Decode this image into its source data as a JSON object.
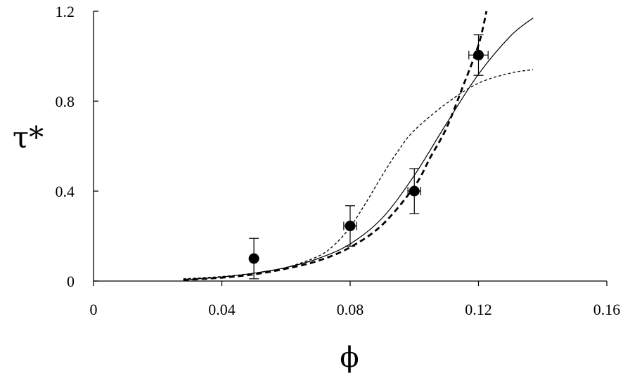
{
  "chart_data": {
    "type": "scatter",
    "title": "",
    "xlabel": "ϕ",
    "ylabel": "τ*",
    "xlim": [
      0,
      0.16
    ],
    "ylim": [
      0,
      1.2
    ],
    "x_ticks": [
      0,
      0.04,
      0.08,
      0.12,
      0.16
    ],
    "x_tick_labels": [
      "0",
      "0.04",
      "0.08",
      "0.12",
      "0.16"
    ],
    "y_ticks": [
      0,
      0.4,
      0.8,
      1.2
    ],
    "y_tick_labels": [
      "0",
      "0.4",
      "0.8",
      "1.2"
    ],
    "grid": false,
    "legend": "none",
    "points": [
      {
        "x": 0.05,
        "y": 0.1,
        "yerr": 0.09,
        "xerr": 0
      },
      {
        "x": 0.08,
        "y": 0.245,
        "yerr": 0.09,
        "xerr": 0.002
      },
      {
        "x": 0.1,
        "y": 0.4,
        "yerr": 0.1,
        "xerr": 0.002
      },
      {
        "x": 0.12,
        "y": 1.005,
        "yerr": 0.09,
        "xerr": 0.003
      }
    ],
    "curves": [
      {
        "style": "solid",
        "x": [
          0.028,
          0.04,
          0.05,
          0.06,
          0.07,
          0.08,
          0.09,
          0.1,
          0.11,
          0.12,
          0.13,
          0.137
        ],
        "y": [
          0.005,
          0.018,
          0.035,
          0.06,
          0.1,
          0.165,
          0.28,
          0.47,
          0.7,
          0.92,
          1.09,
          1.17
        ]
      },
      {
        "style": "dashed-thick",
        "x": [
          0.028,
          0.04,
          0.05,
          0.06,
          0.07,
          0.08,
          0.09,
          0.1,
          0.105,
          0.11,
          0.115,
          0.12,
          0.1225
        ],
        "y": [
          0.005,
          0.015,
          0.03,
          0.055,
          0.09,
          0.15,
          0.25,
          0.42,
          0.55,
          0.68,
          0.86,
          1.05,
          1.2
        ]
      },
      {
        "style": "dashed-thin",
        "x": [
          0.028,
          0.04,
          0.05,
          0.06,
          0.07,
          0.075,
          0.08,
          0.085,
          0.09,
          0.095,
          0.1,
          0.11,
          0.12,
          0.13,
          0.137
        ],
        "y": [
          0.01,
          0.02,
          0.035,
          0.06,
          0.11,
          0.16,
          0.24,
          0.35,
          0.47,
          0.58,
          0.67,
          0.79,
          0.88,
          0.925,
          0.94
        ]
      }
    ]
  }
}
